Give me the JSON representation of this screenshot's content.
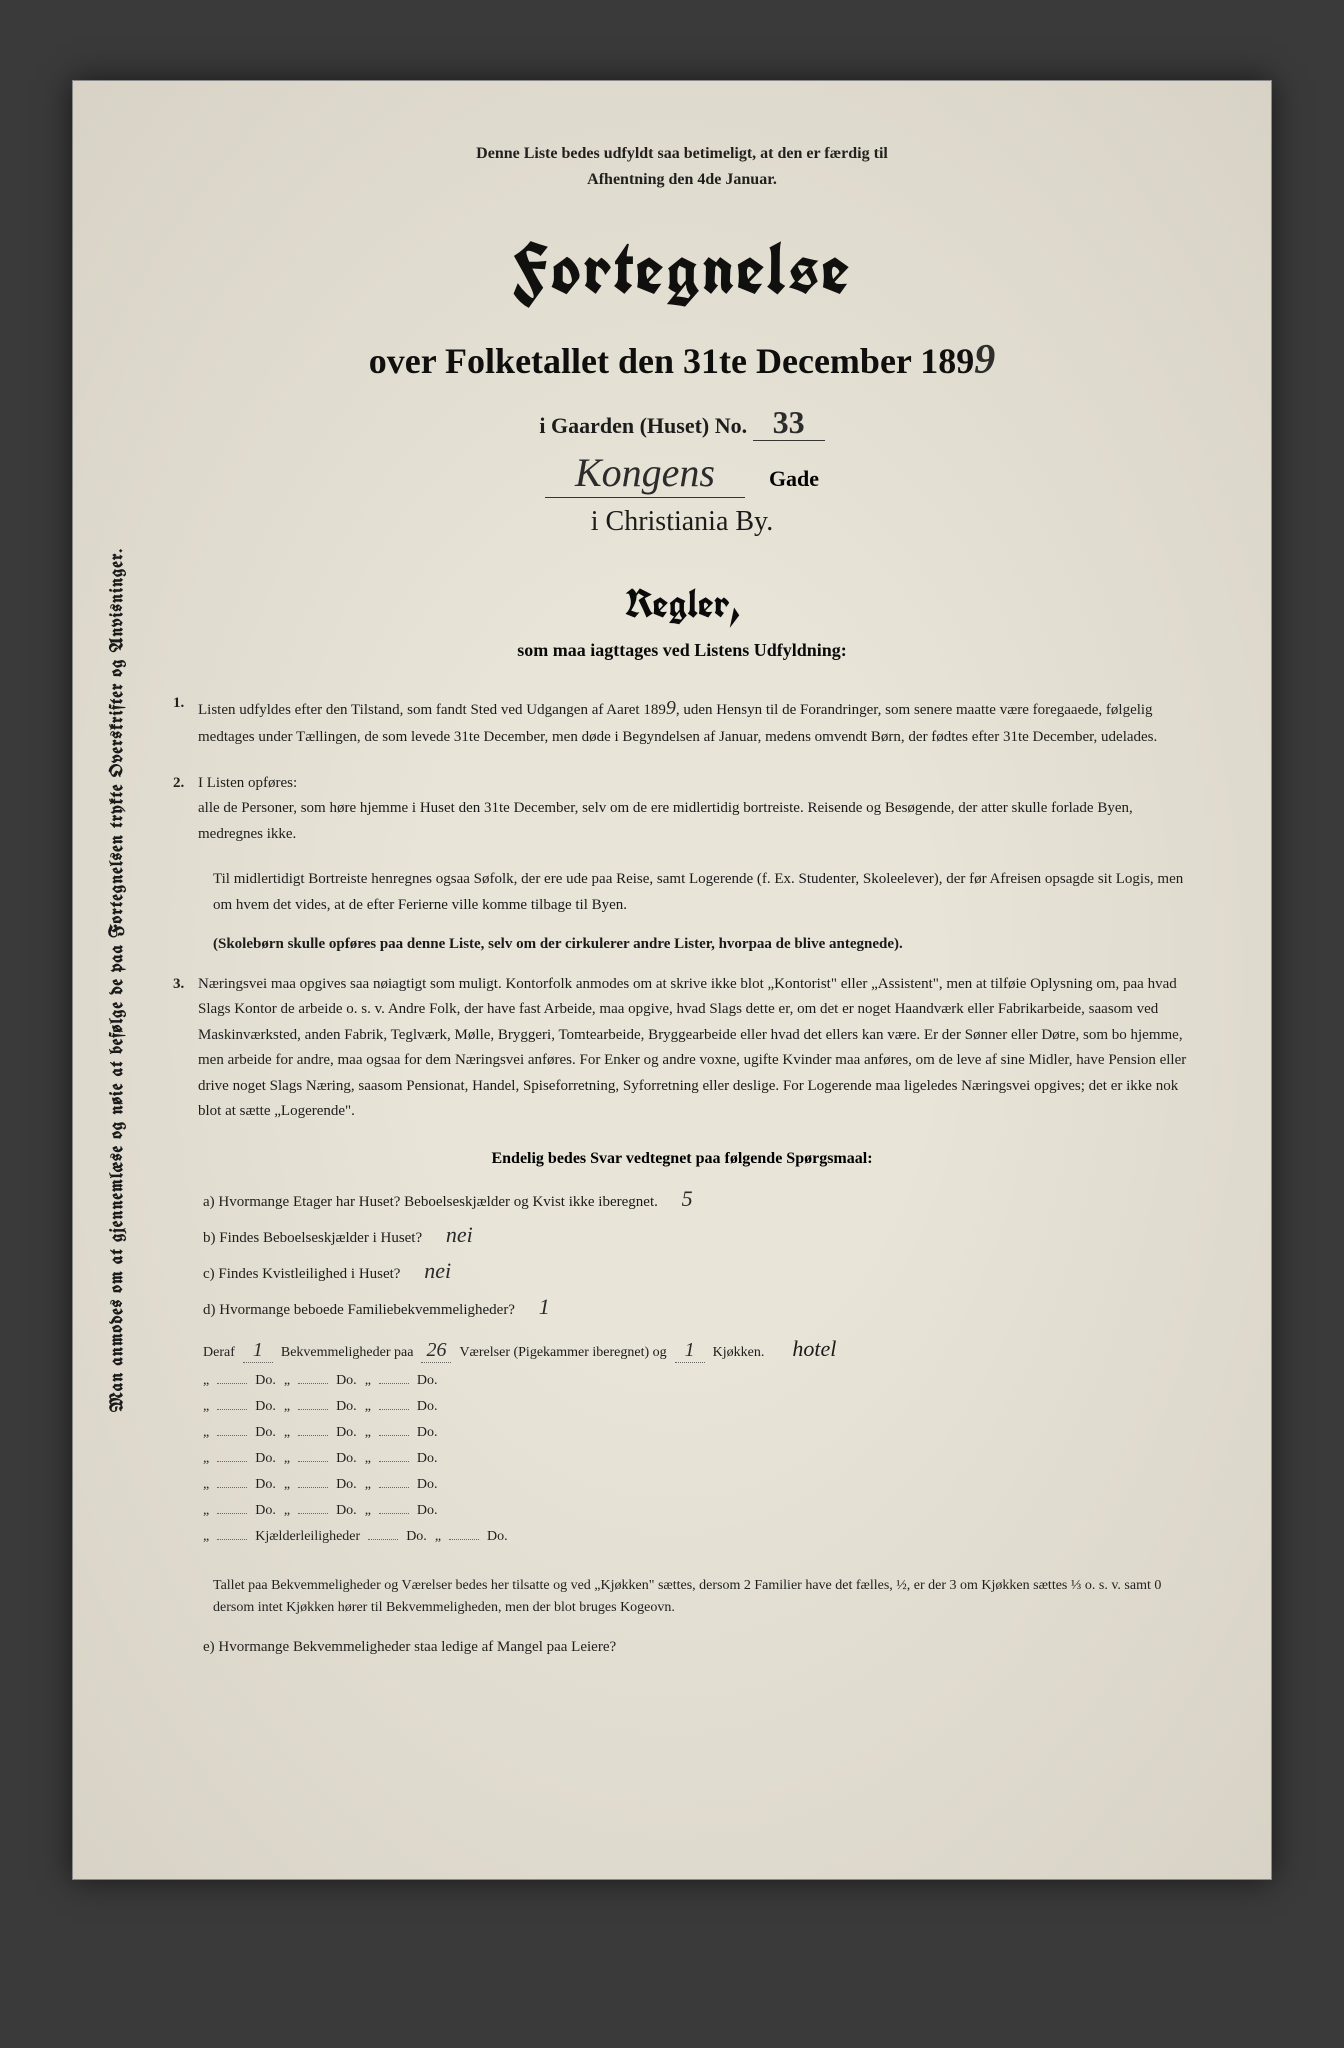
{
  "background_color": "#e8e4d8",
  "text_color": "#1a1a1a",
  "handwriting_color": "#2a2a2a",
  "vertical_margin_text": "Man anmodes om at gjennemlæse og nøie at befølge de paa Fortegnelsen trykte Overskrifter og Anvisninger.",
  "top_note_line1": "Denne Liste bedes udfyldt saa betimeligt, at den er færdig til",
  "top_note_line2": "Afhentning den 4de Januar.",
  "title_main": "Fortegnelse",
  "title_sub_prefix": "over Folketallet den 31te December 189",
  "year_digit": "9",
  "gaarden_label": "i Gaarden (Huset) No.",
  "house_no": "33",
  "street_handwritten": "Kongens",
  "street_suffix": "Gade",
  "city_line": "i Christiania By.",
  "regler_title": "Regler,",
  "regler_sub": "som maa iagttages ved Listens Udfyldning:",
  "rule1_num": "1.",
  "rule1": "Listen udfyldes efter den Tilstand, som fandt Sted ved Udgangen af Aaret 189",
  "rule1_year": "9",
  "rule1_cont": ", uden Hensyn til de Foran­dringer, som senere maatte være foregaaede, følgelig medtages under Tællingen, de som levede 31te December, men døde i Begyndelsen af Januar, medens omvendt Børn, der fødtes efter 31te December, udelades.",
  "rule2_num": "2.",
  "rule2_a": "I Listen opføres:",
  "rule2_b": "alle de Personer, som høre hjemme i Huset den 31te December, selv om de ere midlertidig bortreiste.  Reisende og Besøgende, der atter skulle forlade Byen, medregnes ikke.",
  "rule2_c": "Til midlertidigt Bortreiste henregnes ogsaa Søfolk, der ere ude paa Reise, samt Logerende (f. Ex. Studenter, Skoleelever), der før Afreisen opsagde sit Logis, men om hvem det vides, at de efter Ferierne ville komme tilbage til Byen.",
  "rule2_d": "(Skolebørn skulle opføres paa denne Liste, selv om der cirkulerer andre Lister, hvorpaa de blive antegnede).",
  "rule3_num": "3.",
  "rule3": "Næringsvei maa opgives saa nøiagtigt som muligt.  Kontorfolk anmodes om at skrive ikke blot „Kontorist\" eller „Assistent\", men at tilføie Oplysning om, paa hvad Slags Kontor de arbeide o. s. v.  Andre Folk, der have fast Arbeide, maa opgive, hvad Slags dette er, om det er noget Haandværk eller Fabrikarbeide, saasom ved Maskin­værksted, anden Fabrik, Teglværk, Mølle, Bryggeri, Tomtearbeide, Bryggearbeide eller hvad det ellers kan være. Er der Sønner eller Døtre, som bo hjemme, men arbeide for andre, maa ogsaa for dem Næringsvei anføres. For Enker og andre voxne, ugifte Kvinder maa anføres, om de leve af sine Midler, have Pension eller drive noget Slags Næring, saasom Pensionat, Handel, Spiseforretning, Syforretning eller deslige.  For Logerende maa lige­ledes Næringsvei opgives; det er ikke nok blot at sætte „Logerende\".",
  "questions_header": "Endelig bedes Svar vedtegnet paa følgende Spørgsmaal:",
  "qa_label": "a) Hvormange Etager har Huset?  Beboelseskjælder og Kvist ikke iberegnet.",
  "qa_ans": "5",
  "qb_label": "b) Findes Beboelseskjælder i Huset?",
  "qb_ans": "nei",
  "qc_label": "c) Findes Kvistleilighed i Huset?",
  "qc_ans": "nei",
  "qd_label": "d) Hvormange beboede Familiebekvemmeligheder?",
  "qd_ans": "1",
  "grid_first_deraf": "Deraf",
  "grid_first_bekv": "Bekvemmeligheder paa",
  "grid_first_vaer": "Værelser (Pigekammer iberegnet)  og",
  "grid_first_kjok": "Kjøkken.",
  "grid_v1": "1",
  "grid_v2": "26",
  "grid_v3": "1",
  "grid_trail": "hotel",
  "grid_ditto": "„",
  "grid_do": "Do.",
  "grid_kjeld": "Kjælderleiligheder",
  "bottom_note": "Tallet paa Bekvemmeligheder og Værelser bedes her tilsatte og ved „Kjøkken\" sættes, dersom 2 Familier have det fælles, ½, er der 3 om Kjøkken sættes ⅓ o. s. v. samt 0 dersom intet Kjøkken hører til Bekvemmeligheden, men der blot bruges Kogeovn.",
  "qe_label": "e) Hvormange Bekvemmeligheder staa ledige af Mangel paa Leiere?"
}
